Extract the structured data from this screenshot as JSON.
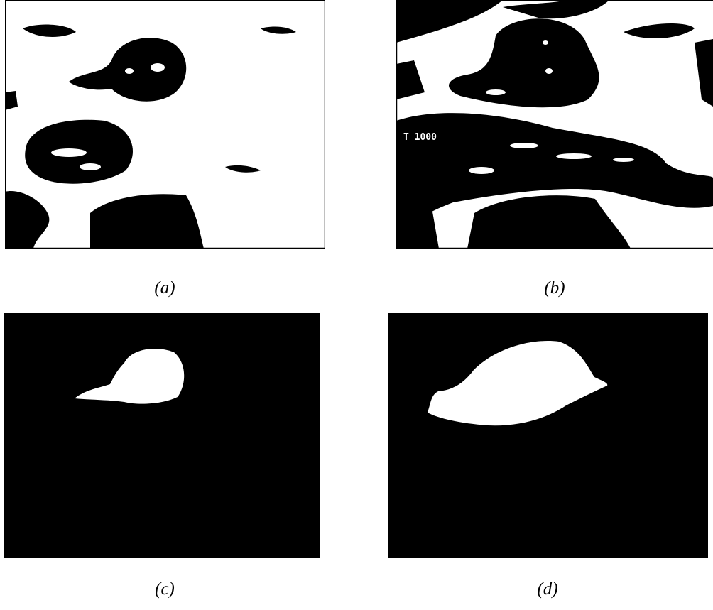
{
  "figure": {
    "panels": [
      {
        "label": "(a)"
      },
      {
        "label": "(b)",
        "overlay_text": "T 1000"
      },
      {
        "label": "(c)"
      },
      {
        "label": "(d)"
      }
    ]
  }
}
